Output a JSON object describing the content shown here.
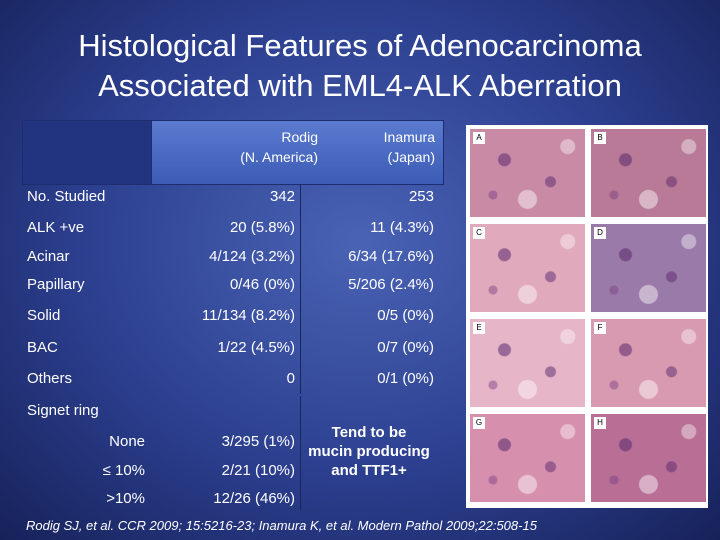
{
  "title": {
    "line1": "Histological Features of Adenocarcinoma",
    "line2": "Associated with EML4-ALK Aberration"
  },
  "table": {
    "col1_header": {
      "line1": "Rodig",
      "line2": "(N. America)"
    },
    "col2_header": {
      "line1": "Inamura",
      "line2": "(Japan)"
    },
    "rows": [
      {
        "label": "No. Studied",
        "c1": "342",
        "c2": "253"
      },
      {
        "label": "ALK +ve",
        "c1": "20 (5.8%)",
        "c2": "11 (4.3%)"
      },
      {
        "label": "Acinar",
        "c1": "4/124 (3.2%)",
        "c2": "6/34 (17.6%)"
      },
      {
        "label": "Papillary",
        "c1": "0/46 (0%)",
        "c2": "5/206 (2.4%)"
      },
      {
        "label": "Solid",
        "c1": "11/134 (8.2%)",
        "c2": "0/5 (0%)"
      },
      {
        "label": "BAC",
        "c1": "1/22 (4.5%)",
        "c2": "0/7 (0%)"
      },
      {
        "label": "Others",
        "c1": "0",
        "c2": "0/1 (0%)"
      }
    ],
    "signet": {
      "label": "Signet ring",
      "rows": [
        {
          "label": "None",
          "c1": "3/295 (1%)"
        },
        {
          "label": "≤ 10%",
          "c1": "2/21 (10%)"
        },
        {
          "label": ">10%",
          "c1": "12/26 (46%)"
        }
      ],
      "note": {
        "line1": "Tend to be",
        "line2": "mucin producing",
        "line3": "and TTF1+"
      }
    }
  },
  "panels": [
    {
      "label": "A",
      "color": "#c98aa6"
    },
    {
      "label": "B",
      "color": "#b87a96"
    },
    {
      "label": "C",
      "color": "#e0a9bc"
    },
    {
      "label": "D",
      "color": "#9a7aa8"
    },
    {
      "label": "E",
      "color": "#e6b5c8"
    },
    {
      "label": "F",
      "color": "#d89ab0"
    },
    {
      "label": "G",
      "color": "#d690ad"
    },
    {
      "label": "H",
      "color": "#b86e95"
    }
  ],
  "citation": "Rodig SJ, et al. CCR 2009; 15:5216-23;  Inamura K, et al. Modern Pathol 2009;22:508-15",
  "colors": {
    "background": "#2c3f8f",
    "header": "#4a6ac4"
  }
}
